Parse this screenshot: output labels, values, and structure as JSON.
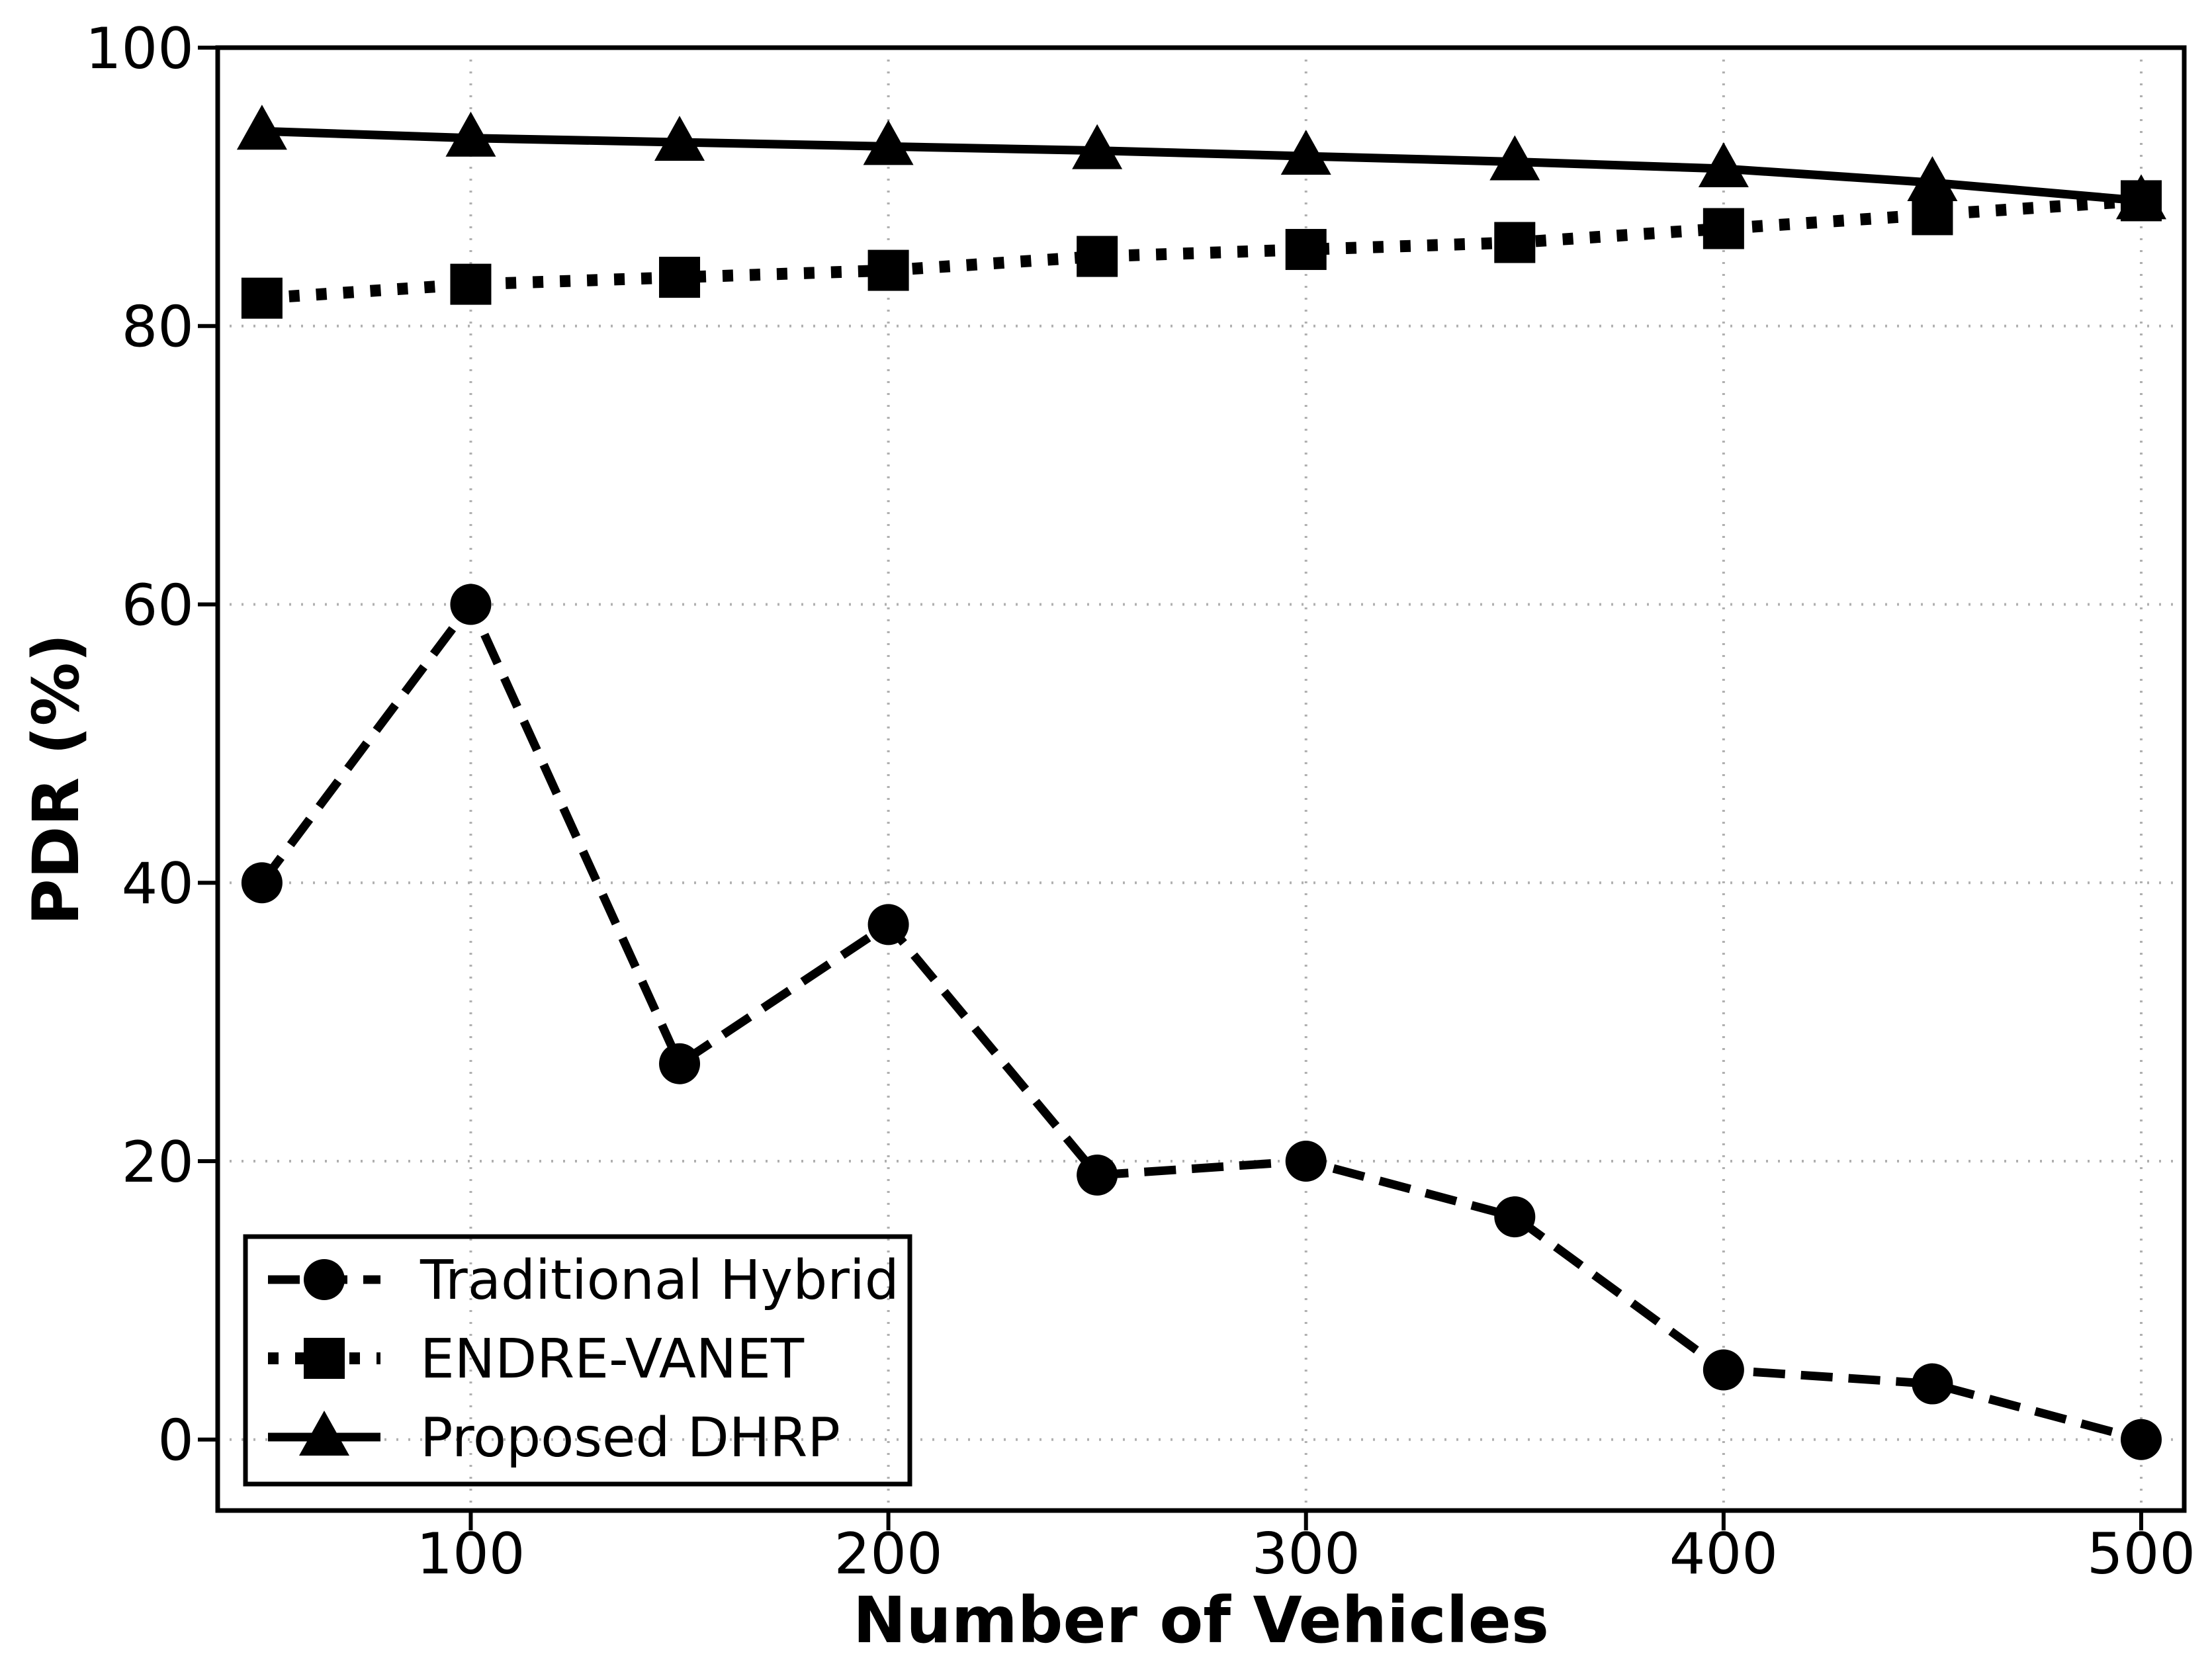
{
  "chart_data": {
    "type": "line",
    "title": "",
    "xlabel": "Number of Vehicles",
    "ylabel": "PDR (%)",
    "x": [
      50,
      100,
      150,
      200,
      250,
      300,
      350,
      400,
      450,
      500
    ],
    "series": [
      {
        "name": "Traditional Hybrid",
        "marker": "circle",
        "linestyle": "dashed",
        "color": "#000000",
        "values": [
          40,
          60,
          27,
          37,
          19,
          20,
          16,
          5,
          4,
          0
        ]
      },
      {
        "name": "ENDRE-VANET",
        "marker": "square",
        "linestyle": "dotted",
        "color": "#000000",
        "values": [
          82,
          83,
          83.5,
          84,
          85,
          85.5,
          86,
          87,
          88,
          89
        ]
      },
      {
        "name": "Proposed DHRP",
        "marker": "triangle",
        "linestyle": "solid",
        "color": "#000000",
        "values": [
          94,
          93.5,
          93.2,
          92.9,
          92.6,
          92.2,
          91.8,
          91.3,
          90.3,
          89
        ]
      }
    ],
    "xticks": [
      100,
      200,
      300,
      400,
      500
    ],
    "yticks": [
      0,
      20,
      40,
      60,
      80,
      100
    ],
    "xlim": [
      39.4,
      510.3
    ],
    "ylim": [
      -5.1,
      100
    ],
    "grid": true,
    "grid_color": "#b0b0b0",
    "axis_color": "#000000",
    "background": "#ffffff",
    "legend_position": "lower-left"
  }
}
